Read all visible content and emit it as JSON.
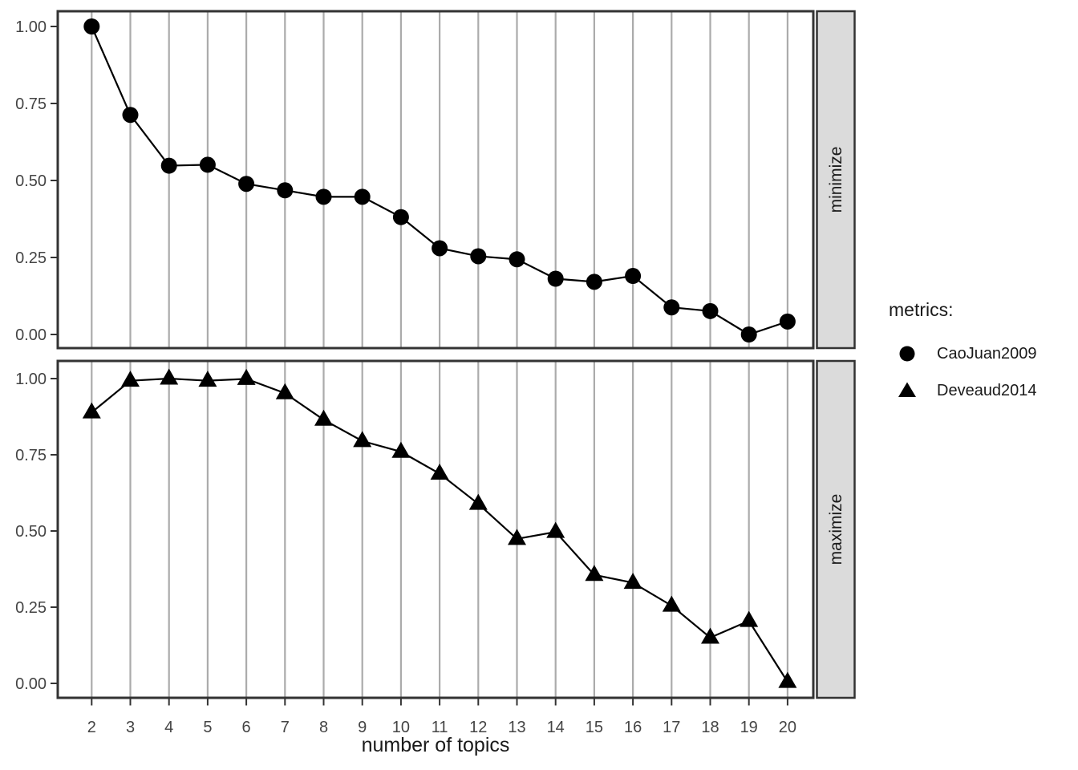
{
  "chart_data": {
    "type": "line",
    "title": "",
    "xlabel": "number of topics",
    "ylabel": "",
    "x": [
      2,
      3,
      4,
      5,
      6,
      7,
      8,
      9,
      10,
      11,
      12,
      13,
      14,
      15,
      16,
      17,
      18,
      19,
      20
    ],
    "x_tick_labels": [
      "2",
      "3",
      "4",
      "5",
      "6",
      "7",
      "8",
      "9",
      "10",
      "11",
      "12",
      "13",
      "14",
      "15",
      "16",
      "17",
      "18",
      "19",
      "20"
    ],
    "y_tick_labels": [
      "1.00",
      "0.75",
      "0.50",
      "0.25",
      "0.00"
    ],
    "y_tick_values": [
      1.0,
      0.75,
      0.5,
      0.25,
      0.0
    ],
    "ylim": [
      0,
      1
    ],
    "grid": "vertical-major-only",
    "legend_position": "right",
    "facets": [
      {
        "label": "minimize",
        "series": "CaoJuan2009"
      },
      {
        "label": "maximize",
        "series": "Deveaud2014"
      }
    ],
    "series": [
      {
        "name": "CaoJuan2009",
        "facet": "minimize",
        "marker": "circle",
        "color": "#000000",
        "values": [
          1.0,
          0.713,
          0.548,
          0.551,
          0.489,
          0.468,
          0.447,
          0.447,
          0.381,
          0.28,
          0.254,
          0.244,
          0.181,
          0.171,
          0.19,
          0.088,
          0.076,
          0.0,
          0.042
        ]
      },
      {
        "name": "Deveaud2014",
        "facet": "maximize",
        "marker": "triangle",
        "color": "#000000",
        "values": [
          0.889,
          0.993,
          1.0,
          0.993,
          0.999,
          0.952,
          0.865,
          0.795,
          0.76,
          0.688,
          0.589,
          0.474,
          0.497,
          0.356,
          0.33,
          0.255,
          0.15,
          0.205,
          0.005
        ]
      }
    ],
    "legend": {
      "title": "metrics:",
      "items": [
        {
          "label": "CaoJuan2009",
          "marker": "circle-icon"
        },
        {
          "label": "Deveaud2014",
          "marker": "triangle-icon"
        }
      ]
    },
    "colors": {
      "series": "#000000",
      "gridline": "#ababab",
      "panel_border": "#333333",
      "tick": "#333333",
      "axis_text": "#444444",
      "strip_bg": "#dbdbdb",
      "strip_text": "#1a1a1a",
      "background": "#ffffff"
    }
  }
}
